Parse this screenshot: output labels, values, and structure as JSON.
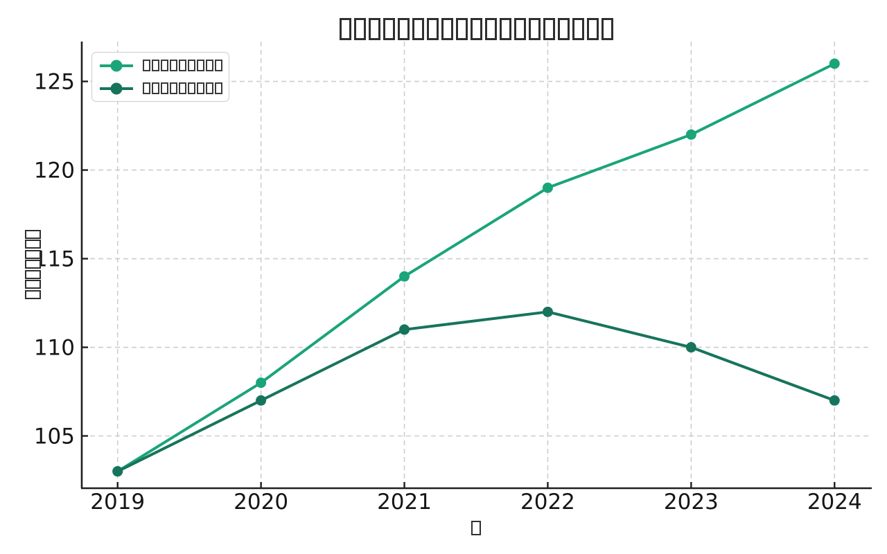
{
  "figure": {
    "background": "#ffffff"
  },
  "chart_data": {
    "type": "line",
    "title": "□□□□□□□□□□□□□□□□□□□",
    "xlabel": "□",
    "ylabel": "□□□□□□□",
    "x": [
      2019,
      2020,
      2021,
      2022,
      2023,
      2024
    ],
    "xticks": [
      2019,
      2020,
      2021,
      2022,
      2023,
      2024
    ],
    "xtick_labels": [
      "2019",
      "2020",
      "2021",
      "2022",
      "2023",
      "2024"
    ],
    "yticks": [
      105,
      110,
      115,
      120,
      125
    ],
    "ytick_labels": [
      "105",
      "110",
      "115",
      "120",
      "125"
    ],
    "xlim": [
      2018.75,
      2024.25
    ],
    "ylim": [
      102.05,
      127.25
    ],
    "series": [
      {
        "label": "□□□□□□□□□",
        "color": "#1aa47a",
        "marker": "circle",
        "values": [
          103,
          108,
          114,
          119,
          122,
          126
        ]
      },
      {
        "label": "□□□□□□□□□",
        "color": "#17745c",
        "marker": "circle",
        "values": [
          103,
          107,
          111,
          112,
          110,
          107
        ]
      }
    ],
    "grid": {
      "visible": true,
      "line_style": "dashed",
      "color": "#cdcdcd"
    },
    "legend": {
      "position": "upper-left"
    },
    "colors": {
      "spine": "#1f1f1f",
      "tick_label": "#151515"
    }
  }
}
